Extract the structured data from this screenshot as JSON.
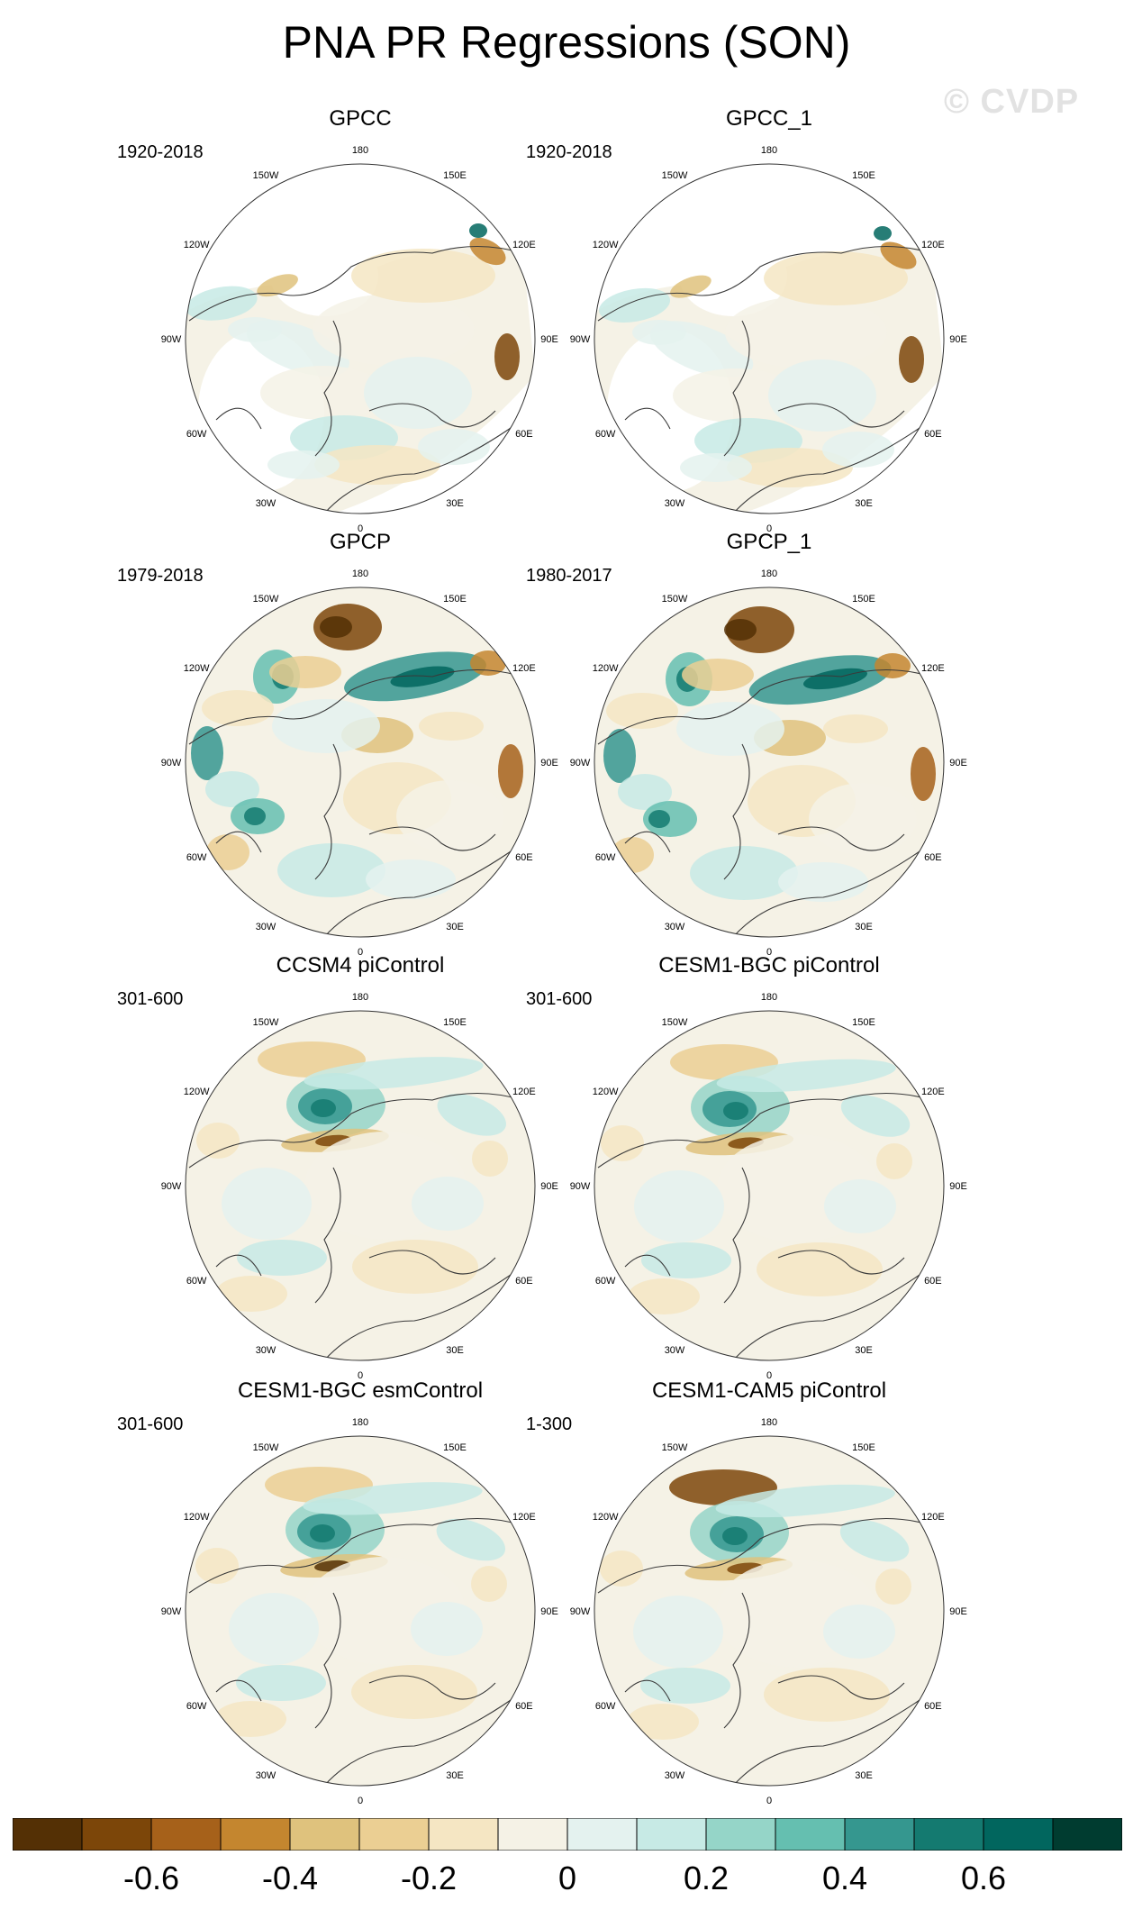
{
  "title": "PNA PR Regressions (SON)",
  "watermark": "© CVDP",
  "lon_labels": [
    "180",
    "150E",
    "120E",
    "90E",
    "60E",
    "30E",
    "0",
    "30W",
    "60W",
    "90W",
    "120W",
    "150W"
  ],
  "panels": [
    {
      "name": "GPCC",
      "period": "1920-2018",
      "pattern": "obs_land",
      "variant": 0
    },
    {
      "name": "GPCC_1",
      "period": "1920-2018",
      "pattern": "obs_land",
      "variant": 1
    },
    {
      "name": "GPCP",
      "period": "1979-2018",
      "pattern": "obs_full",
      "variant": 0
    },
    {
      "name": "GPCP_1",
      "period": "1980-2017",
      "pattern": "obs_full",
      "variant": 1
    },
    {
      "name": "CCSM4 piControl",
      "period": "301-600",
      "pattern": "model",
      "variant": 0
    },
    {
      "name": "CESM1-BGC piControl",
      "period": "301-600",
      "pattern": "model",
      "variant": 1
    },
    {
      "name": "CESM1-BGC esmControl",
      "period": "301-600",
      "pattern": "model",
      "variant": 2
    },
    {
      "name": "CESM1-CAM5 piControl",
      "period": "1-300",
      "pattern": "model",
      "variant": 3
    }
  ],
  "colorbar": {
    "colors": [
      "#543005",
      "#7c4609",
      "#a6611a",
      "#c4862f",
      "#dfc27d",
      "#ebcf93",
      "#f5e6c3",
      "#f5f2e6",
      "#e4f2ef",
      "#c7eae5",
      "#95d5c8",
      "#65bfb0",
      "#35978f",
      "#147a70",
      "#01665e",
      "#003c30"
    ],
    "tick_labels": [
      {
        "label": "-0.6",
        "value": -0.6
      },
      {
        "label": "-0.4",
        "value": -0.4
      },
      {
        "label": "-0.2",
        "value": -0.2
      },
      {
        "label": "0",
        "value": 0
      },
      {
        "label": "0.2",
        "value": 0.2
      },
      {
        "label": "0.4",
        "value": 0.4
      },
      {
        "label": "0.6",
        "value": 0.6
      }
    ],
    "min": -0.8,
    "max": 0.8
  }
}
